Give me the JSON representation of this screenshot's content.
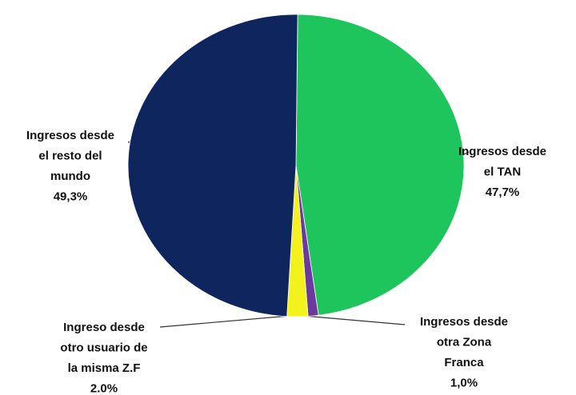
{
  "chart_data": {
    "type": "pie",
    "categories": [
      [
        "Ingresos desde",
        "el TAN"
      ],
      [
        "Ingresos desde",
        "otra Zona",
        "Franca"
      ],
      [
        "Ingreso desde",
        "otro usuario de",
        "la misma Z.F"
      ],
      [
        "Ingresos desde",
        "el resto del",
        "mundo"
      ]
    ],
    "values": [
      47.7,
      1.0,
      2.0,
      49.3
    ],
    "value_labels": [
      "47,7%",
      "1,0%",
      "2.0%",
      "49,3%"
    ],
    "colors": [
      "#1ec45c",
      "#6b3a9c",
      "#f4f21c",
      "#0f255e"
    ]
  }
}
